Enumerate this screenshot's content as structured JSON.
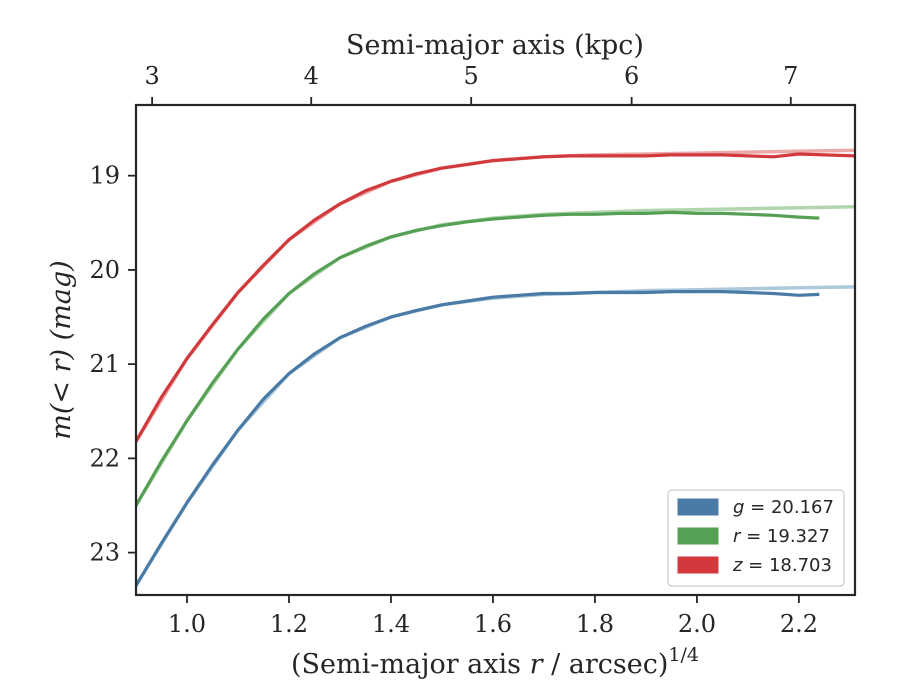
{
  "chart_data": {
    "type": "line",
    "xlabel_main": "(Semi-major axis ",
    "xlabel_var": "r",
    "xlabel_tail": " / arcsec)",
    "xlabel_sup": "1/4",
    "ylabel_main": "m(< r) (mag)",
    "top_xlabel": "Semi-major axis (kpc)",
    "xlim": [
      0.9,
      2.31
    ],
    "ylim": [
      23.45,
      18.25
    ],
    "x_ticks": [
      1.0,
      1.2,
      1.4,
      1.6,
      1.8,
      2.0,
      2.2
    ],
    "x_tick_labels": [
      "1.0",
      "1.2",
      "1.4",
      "1.6",
      "1.8",
      "2.0",
      "2.2"
    ],
    "y_ticks": [
      19,
      20,
      21,
      22,
      23
    ],
    "y_tick_labels": [
      "19",
      "20",
      "21",
      "22",
      "23"
    ],
    "top_ticks_kpc": [
      3,
      4,
      5,
      6,
      7
    ],
    "top_tick_labels": [
      "3",
      "4",
      "5",
      "6",
      "7"
    ],
    "grid": false,
    "legend_position": "lower-right",
    "series": [
      {
        "name": "g = 20.167",
        "color": "#4a7ba6",
        "model_color": "#9fbfd6",
        "x": [
          0.9,
          0.95,
          1.0,
          1.05,
          1.1,
          1.15,
          1.2,
          1.25,
          1.3,
          1.35,
          1.4,
          1.45,
          1.5,
          1.55,
          1.6,
          1.65,
          1.7,
          1.75,
          1.8,
          1.85,
          1.9,
          1.95,
          2.0,
          2.05,
          2.1,
          2.15,
          2.2,
          2.24
        ],
        "y": [
          23.35,
          22.9,
          22.47,
          22.07,
          21.7,
          21.37,
          21.1,
          20.89,
          20.72,
          20.6,
          20.5,
          20.43,
          20.37,
          20.33,
          20.29,
          20.27,
          20.25,
          20.25,
          20.24,
          20.24,
          20.24,
          20.23,
          20.23,
          20.23,
          20.24,
          20.25,
          20.27,
          20.26
        ],
        "model_x": [
          0.9,
          1.0,
          1.1,
          1.2,
          1.3,
          1.4,
          1.5,
          1.6,
          1.7,
          1.8,
          1.9,
          2.0,
          2.1,
          2.2,
          2.31
        ],
        "model_y": [
          23.35,
          22.47,
          21.7,
          21.1,
          20.72,
          20.5,
          20.37,
          20.3,
          20.26,
          20.24,
          20.22,
          20.21,
          20.2,
          20.19,
          20.18
        ]
      },
      {
        "name": "r = 19.327",
        "color": "#55a055",
        "model_color": "#a3cf9f",
        "x": [
          0.9,
          0.95,
          1.0,
          1.05,
          1.1,
          1.15,
          1.2,
          1.25,
          1.3,
          1.35,
          1.4,
          1.45,
          1.5,
          1.55,
          1.6,
          1.65,
          1.7,
          1.75,
          1.8,
          1.85,
          1.9,
          1.95,
          2.0,
          2.05,
          2.1,
          2.15,
          2.2,
          2.24
        ],
        "y": [
          22.5,
          22.03,
          21.6,
          21.2,
          20.84,
          20.52,
          20.25,
          20.04,
          19.87,
          19.75,
          19.65,
          19.58,
          19.53,
          19.49,
          19.46,
          19.44,
          19.42,
          19.41,
          19.41,
          19.4,
          19.4,
          19.39,
          19.4,
          19.4,
          19.41,
          19.42,
          19.44,
          19.45
        ],
        "model_x": [
          0.9,
          1.0,
          1.1,
          1.2,
          1.3,
          1.4,
          1.5,
          1.6,
          1.7,
          1.8,
          1.9,
          2.0,
          2.1,
          2.2,
          2.31
        ],
        "model_y": [
          22.5,
          21.6,
          20.84,
          20.25,
          19.87,
          19.65,
          19.52,
          19.45,
          19.41,
          19.39,
          19.37,
          19.36,
          19.35,
          19.34,
          19.33
        ]
      },
      {
        "name": "z = 18.703",
        "color": "#d1393c",
        "model_color": "#e79a9a",
        "x": [
          0.9,
          0.95,
          1.0,
          1.05,
          1.1,
          1.15,
          1.2,
          1.25,
          1.3,
          1.35,
          1.4,
          1.45,
          1.5,
          1.55,
          1.6,
          1.65,
          1.7,
          1.75,
          1.8,
          1.85,
          1.9,
          1.95,
          2.0,
          2.05,
          2.1,
          2.15,
          2.2,
          2.25,
          2.31
        ],
        "y": [
          21.82,
          21.35,
          20.94,
          20.58,
          20.24,
          19.95,
          19.68,
          19.47,
          19.3,
          19.16,
          19.06,
          18.98,
          18.92,
          18.88,
          18.84,
          18.82,
          18.8,
          18.79,
          18.79,
          18.79,
          18.79,
          18.78,
          18.78,
          18.78,
          18.79,
          18.8,
          18.77,
          18.78,
          18.79
        ],
        "model_x": [
          0.9,
          1.0,
          1.1,
          1.2,
          1.3,
          1.4,
          1.5,
          1.6,
          1.7,
          1.8,
          1.9,
          2.0,
          2.1,
          2.2,
          2.31
        ],
        "model_y": [
          21.82,
          20.94,
          20.24,
          19.68,
          19.3,
          19.06,
          18.92,
          18.84,
          18.8,
          18.78,
          18.77,
          18.76,
          18.75,
          18.74,
          18.73
        ]
      }
    ],
    "legend": [
      {
        "band": "g",
        "rest": " = 20.167",
        "color": "#4a7ba6"
      },
      {
        "band": "r",
        "rest": " = 19.327",
        "color": "#55a055"
      },
      {
        "band": "z",
        "rest": " = 18.703",
        "color": "#d1393c"
      }
    ]
  }
}
